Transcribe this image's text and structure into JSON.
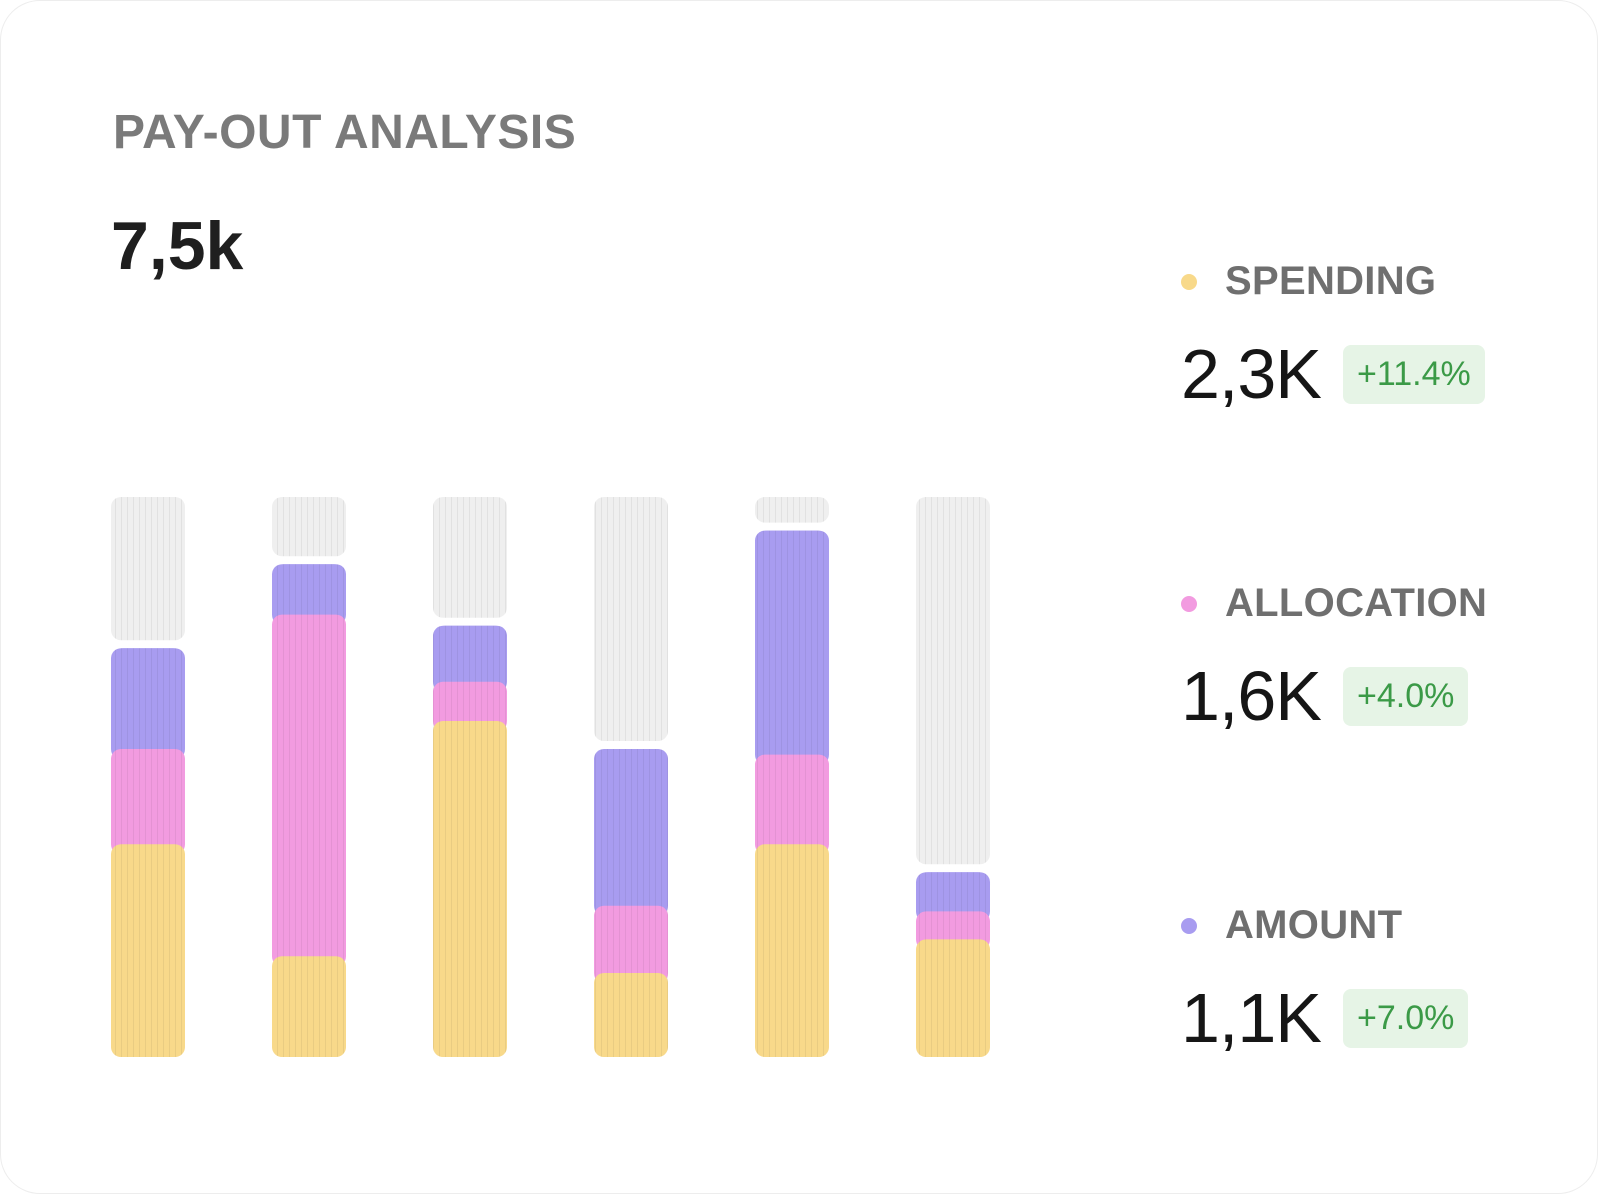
{
  "card": {
    "title": "PAY-OUT ANALYSIS",
    "total": "7,5k"
  },
  "legend": [
    {
      "name": "SPENDING",
      "value": "2,3K",
      "change": "+11.4%",
      "color": "#f8d98a"
    },
    {
      "name": "ALLOCATION",
      "value": "1,6K",
      "change": "+4.0%",
      "color": "#f29be0"
    },
    {
      "name": "AMOUNT",
      "value": "1,1K",
      "change": "+7.0%",
      "color": "#a89cf0"
    }
  ],
  "chart_data": {
    "type": "bar",
    "stacked": true,
    "categories": [
      "",
      "",
      "",
      "",
      "",
      ""
    ],
    "series": [
      {
        "name": "SPENDING",
        "color": "#f8d98a",
        "values": [
          38,
          18,
          60,
          15,
          38,
          21
        ]
      },
      {
        "name": "ALLOCATION",
        "color": "#f29be0",
        "values": [
          17,
          61,
          7,
          12,
          16,
          5
        ]
      },
      {
        "name": "AMOUNT",
        "color": "#a89cf0",
        "values": [
          18,
          9,
          10,
          28,
          40,
          7
        ]
      }
    ],
    "ylim": [
      0,
      100
    ],
    "background_track_color": "#efefef",
    "grid": false,
    "legend_position": "right"
  }
}
